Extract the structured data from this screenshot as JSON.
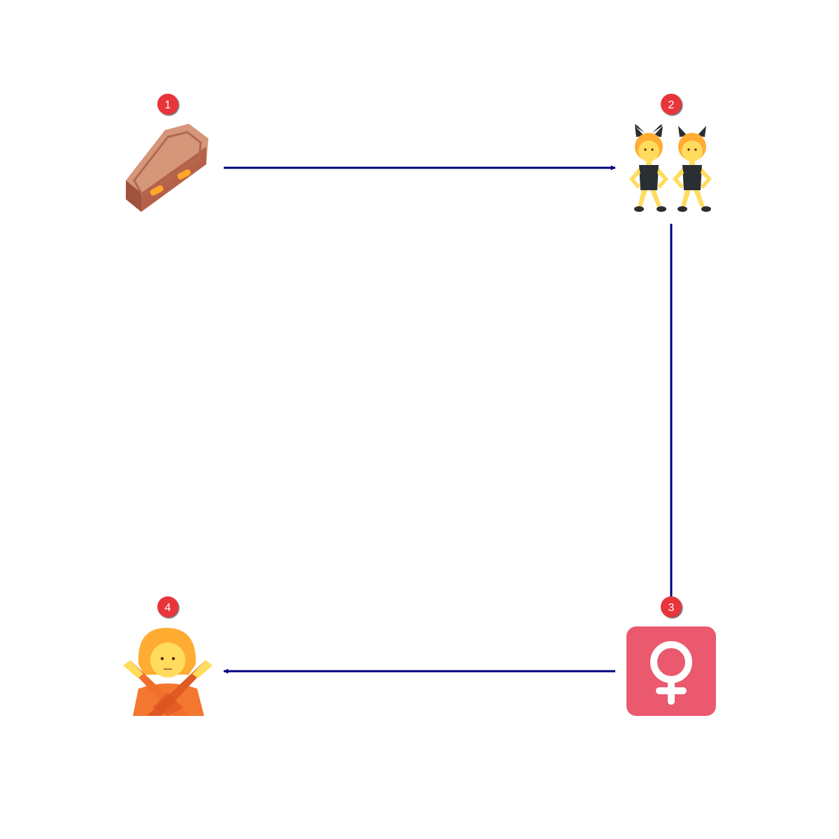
{
  "diagram": {
    "edge_color": "#000080",
    "badge_color": "#e8353a",
    "nodes": [
      {
        "id": "n1",
        "step": "1",
        "icon": "coffin-icon"
      },
      {
        "id": "n2",
        "step": "2",
        "icon": "women-with-bunny-ears-icon"
      },
      {
        "id": "n3",
        "step": "3",
        "icon": "female-sign-icon"
      },
      {
        "id": "n4",
        "step": "4",
        "icon": "person-gesturing-no-icon"
      }
    ],
    "edges": [
      {
        "from": "1",
        "to": "2"
      },
      {
        "from": "2",
        "to": "3"
      },
      {
        "from": "3",
        "to": "4"
      }
    ]
  }
}
